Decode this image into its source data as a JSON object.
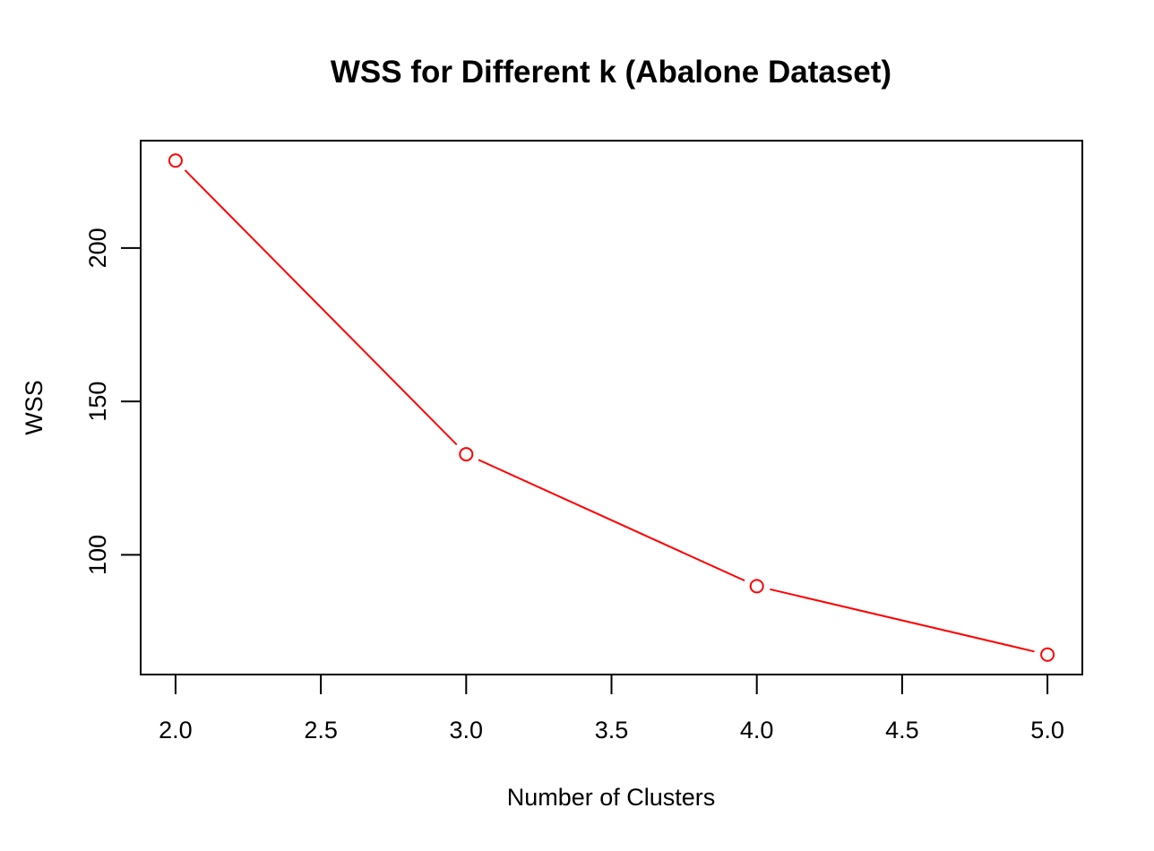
{
  "chart_data": {
    "type": "line",
    "title": "WSS for Different k (Abalone Dataset)",
    "xlabel": "Number of Clusters",
    "ylabel": "WSS",
    "x": [
      2,
      3,
      4,
      5
    ],
    "series": [
      {
        "values": [
          228.5,
          132.8,
          89.8,
          67.5
        ],
        "color": "#ff0000"
      }
    ],
    "xlim": [
      1.88,
      5.12
    ],
    "ylim": [
      61,
      235
    ],
    "xticks": [
      2.0,
      2.5,
      3.0,
      3.5,
      4.0,
      4.5,
      5.0
    ],
    "xtick_labels": [
      "2.0",
      "2.5",
      "3.0",
      "3.5",
      "4.0",
      "4.5",
      "5.0"
    ],
    "yticks": [
      100,
      150,
      200
    ],
    "ytick_labels": [
      "100",
      "150",
      "200"
    ],
    "grid": false,
    "markers": "open-circle",
    "box": true
  }
}
